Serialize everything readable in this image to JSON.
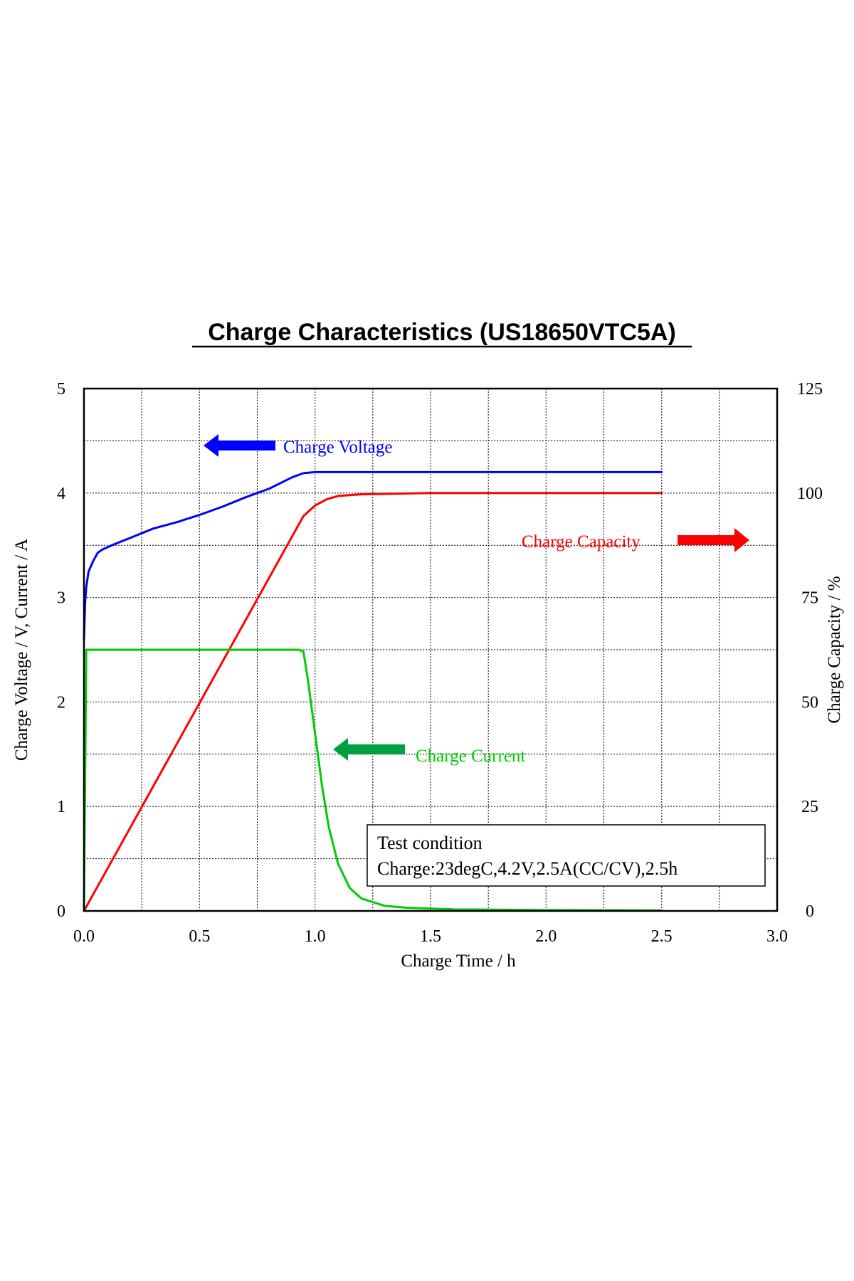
{
  "chart_data": {
    "type": "line",
    "title": "Charge Characteristics (US18650VTC5A)",
    "xlabel": "Charge Time / h",
    "ylabel_left": "Charge Voltage / V, Current / A",
    "ylabel_right": "Charge Capacity / %",
    "xlim": [
      0.0,
      3.0
    ],
    "ylim_left": [
      0,
      5
    ],
    "ylim_right": [
      0,
      125
    ],
    "x_ticks": [
      "0.0",
      "0.5",
      "1.0",
      "1.5",
      "2.0",
      "2.5",
      "3.0"
    ],
    "y_ticks_left": [
      "0",
      "1",
      "2",
      "3",
      "4",
      "5"
    ],
    "y_ticks_right": [
      "0",
      "25",
      "50",
      "75",
      "100",
      "125"
    ],
    "grid": true,
    "series": [
      {
        "name": "Charge Voltage",
        "axis": "left",
        "color": "#0000ff",
        "points": [
          [
            0.0,
            2.6
          ],
          [
            0.005,
            2.95
          ],
          [
            0.01,
            3.1
          ],
          [
            0.02,
            3.25
          ],
          [
            0.04,
            3.35
          ],
          [
            0.06,
            3.43
          ],
          [
            0.08,
            3.46
          ],
          [
            0.12,
            3.5
          ],
          [
            0.2,
            3.57
          ],
          [
            0.3,
            3.66
          ],
          [
            0.4,
            3.72
          ],
          [
            0.5,
            3.79
          ],
          [
            0.6,
            3.87
          ],
          [
            0.7,
            3.96
          ],
          [
            0.8,
            4.04
          ],
          [
            0.9,
            4.15
          ],
          [
            0.95,
            4.19
          ],
          [
            1.0,
            4.2
          ],
          [
            1.5,
            4.2
          ],
          [
            2.0,
            4.2
          ],
          [
            2.5,
            4.2
          ]
        ]
      },
      {
        "name": "Charge Current",
        "axis": "left",
        "color": "#00cc00",
        "points": [
          [
            0.0,
            0.0
          ],
          [
            0.01,
            2.5
          ],
          [
            0.93,
            2.5
          ],
          [
            0.95,
            2.48
          ],
          [
            0.97,
            2.2
          ],
          [
            1.0,
            1.7
          ],
          [
            1.03,
            1.2
          ],
          [
            1.06,
            0.8
          ],
          [
            1.1,
            0.45
          ],
          [
            1.15,
            0.22
          ],
          [
            1.2,
            0.12
          ],
          [
            1.3,
            0.05
          ],
          [
            1.4,
            0.03
          ],
          [
            1.6,
            0.015
          ],
          [
            2.0,
            0.008
          ],
          [
            2.5,
            0.005
          ]
        ]
      },
      {
        "name": "Charge Capacity",
        "axis": "right",
        "color": "#ff0000",
        "points": [
          [
            0.0,
            0.0
          ],
          [
            0.95,
            94.5
          ],
          [
            1.0,
            97.0
          ],
          [
            1.05,
            98.5
          ],
          [
            1.1,
            99.3
          ],
          [
            1.2,
            99.7
          ],
          [
            1.5,
            100.0
          ],
          [
            2.0,
            100.0
          ],
          [
            2.5,
            100.0
          ]
        ]
      }
    ],
    "annotations": {
      "condition_title": "Test condition",
      "condition_detail": "Charge:23degC,4.2V,2.5A(CC/CV),2.5h"
    }
  }
}
